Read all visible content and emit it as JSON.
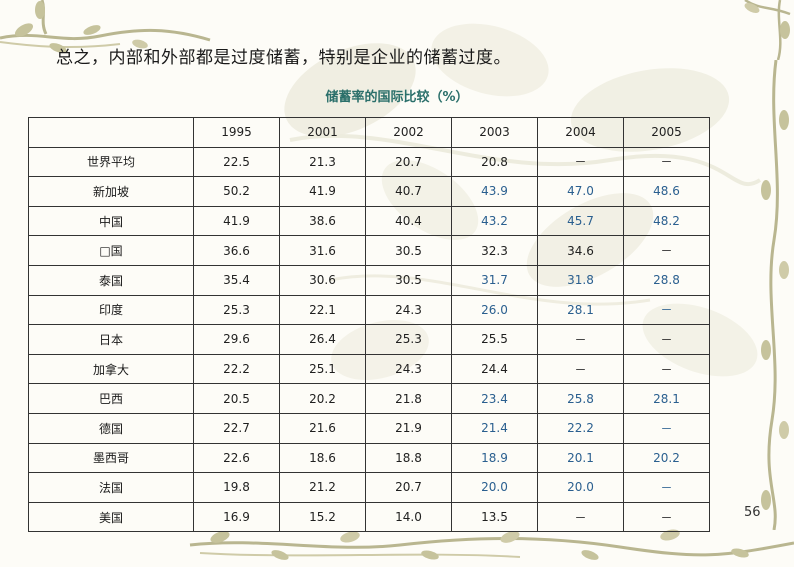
{
  "heading": "总之，内部和外部都是过度储蓄，特别是企业的储蓄过度。",
  "table": {
    "title": "储蓄率的国际比较（%）",
    "corner": "",
    "years": [
      "1995",
      "2001",
      "2002",
      "2003",
      "2004",
      "2005"
    ],
    "rows": [
      {
        "country": "世界平均",
        "values": [
          "22.5",
          "21.3",
          "20.7",
          "20.8",
          "－",
          "－"
        ]
      },
      {
        "country": "新加坡",
        "values": [
          "50.2",
          "41.9",
          "40.7",
          "43.9",
          "47.0",
          "48.6"
        ]
      },
      {
        "country": "中国",
        "values": [
          "41.9",
          "38.6",
          "40.4",
          "43.2",
          "45.7",
          "48.2"
        ]
      },
      {
        "country": "□国",
        "values": [
          "36.6",
          "31.6",
          "30.5",
          "32.3",
          "34.6",
          "－"
        ]
      },
      {
        "country": "泰国",
        "values": [
          "35.4",
          "30.6",
          "30.5",
          "31.7",
          "31.8",
          "28.8"
        ]
      },
      {
        "country": "印度",
        "values": [
          "25.3",
          "22.1",
          "24.3",
          "26.0",
          "28.1",
          "－"
        ]
      },
      {
        "country": "日本",
        "values": [
          "29.6",
          "26.4",
          "25.3",
          "25.5",
          "－",
          "－"
        ]
      },
      {
        "country": "加拿大",
        "values": [
          "22.2",
          "25.1",
          "24.3",
          "24.4",
          "－",
          "－"
        ]
      },
      {
        "country": "巴西",
        "values": [
          "20.5",
          "20.2",
          "21.8",
          "23.4",
          "25.8",
          "28.1"
        ]
      },
      {
        "country": "德国",
        "values": [
          "22.7",
          "21.6",
          "21.9",
          "21.4",
          "22.2",
          "－"
        ]
      },
      {
        "country": "墨西哥",
        "values": [
          "22.6",
          "18.6",
          "18.8",
          "18.9",
          "20.1",
          "20.2"
        ]
      },
      {
        "country": "法国",
        "values": [
          "19.8",
          "21.2",
          "20.7",
          "20.0",
          "20.0",
          "－"
        ]
      },
      {
        "country": "美国",
        "values": [
          "16.9",
          "15.2",
          "14.0",
          "13.5",
          "－",
          "－"
        ]
      }
    ]
  },
  "page_number": "56",
  "colors": {
    "title_teal": "#2a6f6a",
    "highlight_blue": "#2a5f8f",
    "vine_green": "#8a9a5b"
  },
  "icons": {
    "decoration": "vine-leaf-border"
  }
}
